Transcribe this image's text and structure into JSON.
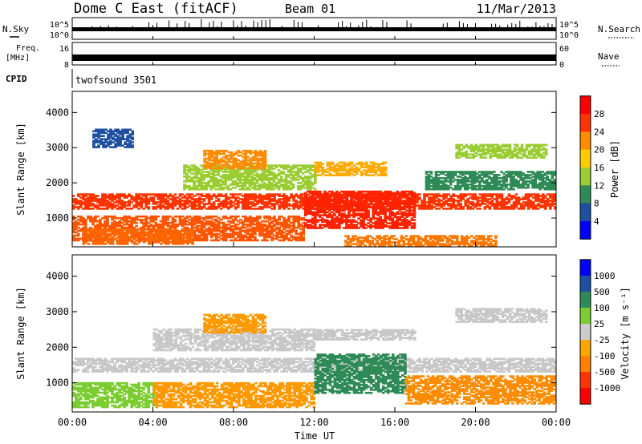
{
  "header": {
    "station": "Dome C East (fitACF)",
    "beam": "Beam 01",
    "date": "11/Mar/2013"
  },
  "chart_data": [
    {
      "type": "line",
      "panel": "noise",
      "left_label": "N.Sky",
      "right_label": "N.Search",
      "left_ticks": [
        "10^5",
        "10^0"
      ],
      "right_ticks": [
        "10^5",
        "10^0"
      ],
      "right_legend_line": "dotted"
    },
    {
      "type": "bar",
      "panel": "freq-nave",
      "left_label_lines": [
        "Freq.",
        "[MHz]"
      ],
      "left_ticks": [
        "16",
        "8"
      ],
      "right_label": "Nave",
      "right_ticks": [
        "60",
        "0"
      ],
      "right_legend_line": "dotted"
    },
    {
      "type": "table",
      "panel": "cpid",
      "label": "CPID",
      "value": "twofsound 3501"
    },
    {
      "type": "heatmap",
      "panel": "power",
      "ylabel": "Slant Range [km]",
      "yticks": [
        "4000",
        "3000",
        "2000",
        "1000"
      ],
      "ytick_values": [
        4000,
        3000,
        2000,
        1000
      ],
      "ylim": [
        180,
        4600
      ],
      "colorbar": {
        "label": "Power [dB]",
        "ticks": [
          "28",
          "24",
          "20",
          "16",
          "12",
          "8",
          "4"
        ],
        "colors": [
          "#ff0000",
          "#ff3300",
          "#ff8c00",
          "#ffcc00",
          "#9acd32",
          "#2e8b57",
          "#1e4fa0",
          "#0000ff"
        ]
      }
    },
    {
      "type": "heatmap",
      "panel": "velocity",
      "ylabel": "Slant Range [km]",
      "yticks": [
        "4000",
        "3000",
        "2000",
        "1000"
      ],
      "ytick_values": [
        4000,
        3000,
        2000,
        1000
      ],
      "ylim": [
        180,
        4600
      ],
      "colorbar": {
        "label": "Velocity [m s⁻¹]",
        "ticks": [
          "1000",
          "500",
          "100",
          "25",
          "-25",
          "-100",
          "-500",
          "-1000"
        ],
        "colors": [
          "#0000ff",
          "#1e4fa0",
          "#2e8b57",
          "#7ccd32",
          "#cccccc",
          "#ffa500",
          "#ff7f00",
          "#ff3300",
          "#ff0000"
        ]
      }
    }
  ],
  "xaxis": {
    "label": "Time UT",
    "ticks": [
      "00:00",
      "04:00",
      "08:00",
      "12:00",
      "16:00",
      "20:00",
      "00:00"
    ],
    "tick_hours": [
      0,
      4,
      8,
      12,
      16,
      20,
      24
    ],
    "range_hours": [
      0,
      24
    ]
  },
  "power_patches": [
    {
      "t0": 0.0,
      "t1": 24.0,
      "r0": 1250,
      "r1": 1700,
      "c": "#ff3300"
    },
    {
      "t0": 0.0,
      "t1": 11.5,
      "r0": 350,
      "r1": 1050,
      "c": "#ff5500"
    },
    {
      "t0": 11.5,
      "t1": 17.0,
      "r0": 700,
      "r1": 1750,
      "c": "#ff2200"
    },
    {
      "t0": 0.5,
      "t1": 6.0,
      "r0": 250,
      "r1": 700,
      "c": "#ff6600"
    },
    {
      "t0": 5.5,
      "t1": 12.0,
      "r0": 1800,
      "r1": 2500,
      "c": "#9acd32"
    },
    {
      "t0": 12.0,
      "t1": 15.5,
      "r0": 2200,
      "r1": 2600,
      "c": "#ffaa00"
    },
    {
      "t0": 6.5,
      "t1": 9.5,
      "r0": 2400,
      "r1": 2900,
      "c": "#ff8c00"
    },
    {
      "t0": 17.5,
      "t1": 24.0,
      "r0": 1800,
      "r1": 2300,
      "c": "#2e8b57"
    },
    {
      "t0": 19.0,
      "t1": 23.5,
      "r0": 2700,
      "r1": 3100,
      "c": "#9acd32"
    },
    {
      "t0": 13.5,
      "t1": 21.0,
      "r0": 200,
      "r1": 500,
      "c": "#ff7700"
    },
    {
      "t0": 1.0,
      "t1": 3.0,
      "r0": 3000,
      "r1": 3500,
      "c": "#1e4fa0"
    }
  ],
  "velocity_patches": [
    {
      "t0": 0.0,
      "t1": 24.0,
      "r0": 1300,
      "r1": 1700,
      "c": "#c8c8c8"
    },
    {
      "t0": 0.0,
      "t1": 4.0,
      "r0": 300,
      "r1": 1000,
      "c": "#7ccd32"
    },
    {
      "t0": 4.0,
      "t1": 12.0,
      "r0": 300,
      "r1": 1000,
      "c": "#ff9900"
    },
    {
      "t0": 12.0,
      "t1": 16.5,
      "r0": 700,
      "r1": 1800,
      "c": "#2e8b57"
    },
    {
      "t0": 16.5,
      "t1": 24.0,
      "r0": 400,
      "r1": 1200,
      "c": "#ff8c00"
    },
    {
      "t0": 4.0,
      "t1": 12.0,
      "r0": 1900,
      "r1": 2500,
      "c": "#c8c8c8"
    },
    {
      "t0": 12.0,
      "t1": 17.0,
      "r0": 2200,
      "r1": 2500,
      "c": "#c8c8c8"
    },
    {
      "t0": 6.5,
      "t1": 9.5,
      "r0": 2400,
      "r1": 2900,
      "c": "#ff9900"
    },
    {
      "t0": 19.0,
      "t1": 23.5,
      "r0": 2700,
      "r1": 3100,
      "c": "#c8c8c8"
    }
  ]
}
